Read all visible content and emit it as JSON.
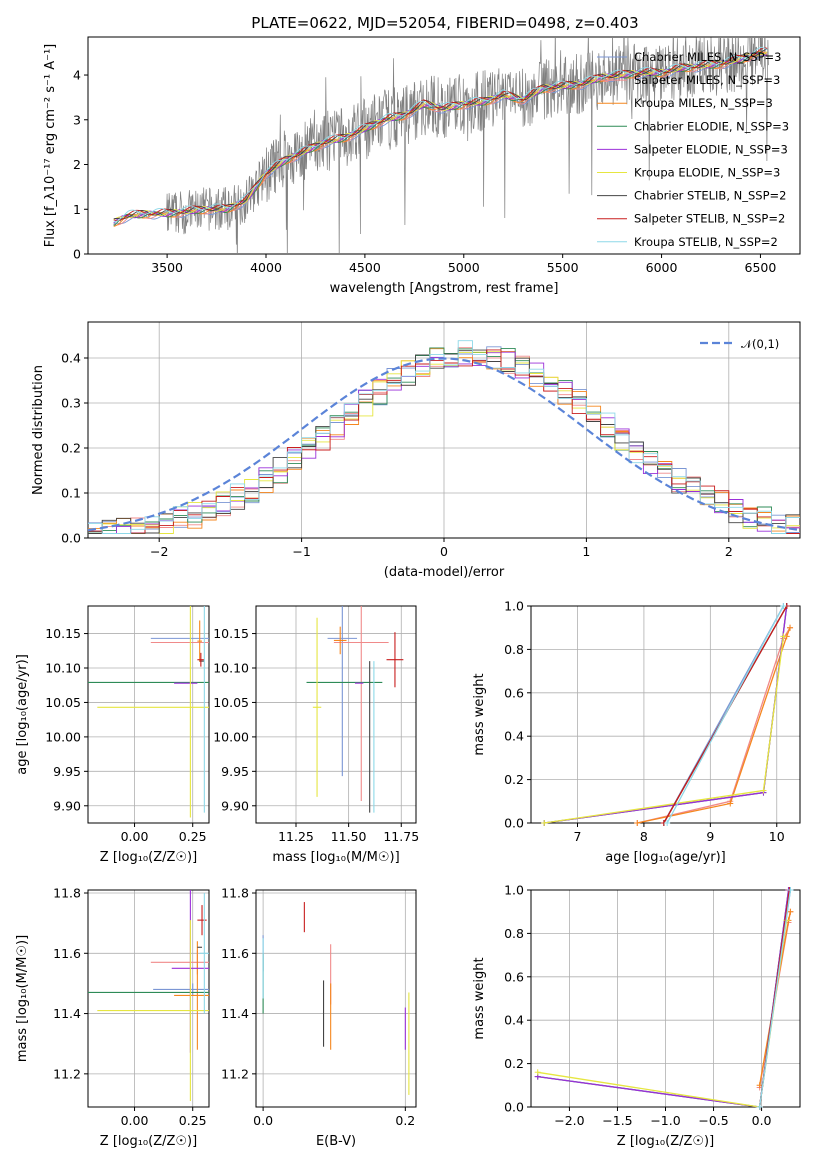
{
  "figure_title": "PLATE=0622, MJD=52054, FIBERID=0498, z=0.403",
  "chart_data": [
    {
      "id": "spectrum",
      "type": "line",
      "xlabel": "wavelength [Angstrom, rest frame]",
      "ylabel": "Flux [f_λ10⁻¹⁷ erg cm⁻² s⁻¹ A⁻¹]",
      "xlim": [
        3100,
        6700
      ],
      "ylim": [
        0,
        4.85
      ],
      "xticks": [
        "3500",
        "4000",
        "4500",
        "5000",
        "5500",
        "6000",
        "6500"
      ],
      "xtick_values": [
        3500,
        4000,
        4500,
        5000,
        5500,
        6000,
        6500
      ],
      "yticks": [
        "0",
        "1",
        "2",
        "3",
        "4"
      ],
      "ytick_values": [
        0,
        1,
        2,
        3,
        4
      ],
      "legend_position": "right",
      "model_continuum": {
        "x": [
          3230,
          3300,
          3400,
          3500,
          3600,
          3700,
          3800,
          3900,
          4000,
          4100,
          4200,
          4300,
          4400,
          4500,
          4600,
          4700,
          4800,
          4900,
          5000,
          5100,
          5200,
          5300,
          5400,
          5500,
          5600,
          5700,
          5800,
          5900,
          6000,
          6100,
          6200,
          6300,
          6400,
          6500
        ],
        "y": [
          0.7,
          0.85,
          0.9,
          0.9,
          0.95,
          1.0,
          1.0,
          1.2,
          1.8,
          2.1,
          2.3,
          2.5,
          2.6,
          2.8,
          3.0,
          3.1,
          3.35,
          3.25,
          3.35,
          3.4,
          3.55,
          3.45,
          3.7,
          3.75,
          3.8,
          3.95,
          4.0,
          4.05,
          4.05,
          4.15,
          4.2,
          4.25,
          4.35,
          4.5
        ]
      },
      "series": [
        {
          "name": "Chabrier MILES, N_SSP=3",
          "color": "#7b96d4"
        },
        {
          "name": "Salpeter MILES, N_SSP=3",
          "color": "#f08a8a"
        },
        {
          "name": "Kroupa MILES, N_SSP=3",
          "color": "#f5871f"
        },
        {
          "name": "Chabrier ELODIE, N_SSP=3",
          "color": "#2e8b57"
        },
        {
          "name": "Salpeter ELODIE, N_SSP=3",
          "color": "#9b30d9"
        },
        {
          "name": "Kroupa ELODIE, N_SSP=3",
          "color": "#e6e640"
        },
        {
          "name": "Chabrier STELIB, N_SSP=2",
          "color": "#444444"
        },
        {
          "name": "Salpeter STELIB, N_SSP=2",
          "color": "#c81e1e"
        },
        {
          "name": "Kroupa STELIB, N_SSP=2",
          "color": "#8ed8e8"
        }
      ]
    },
    {
      "id": "residuals",
      "type": "line",
      "xlabel": "(data-model)/error",
      "ylabel": "Normed distribution",
      "xlim": [
        -2.5,
        2.5
      ],
      "ylim": [
        0,
        0.48
      ],
      "xticks": [
        "−2",
        "−1",
        "0",
        "1",
        "2"
      ],
      "xtick_values": [
        -2,
        -1,
        0,
        1,
        2
      ],
      "yticks": [
        "0.0",
        "0.1",
        "0.2",
        "0.3",
        "0.4"
      ],
      "ytick_values": [
        0,
        0.1,
        0.2,
        0.3,
        0.4
      ],
      "grid": true,
      "legend": "𝒩(0,1)",
      "legend_position": "top-right",
      "gaussian_color": "#5b84d8"
    },
    {
      "id": "z-age",
      "type": "scatter",
      "xlabel": "Z [log₁₀(Z/Z☉)]",
      "ylabel": "age  [log₁₀(age/yr)]",
      "xlim": [
        -0.2,
        0.32
      ],
      "ylim": [
        9.875,
        10.19
      ],
      "xticks": [
        "0.00",
        "0.25"
      ],
      "xtick_values": [
        0,
        0.25
      ],
      "yticks": [
        "9.90",
        "9.95",
        "10.00",
        "10.05",
        "10.10",
        "10.15"
      ],
      "ytick_values": [
        9.9,
        9.95,
        10,
        10.05,
        10.1,
        10.15
      ],
      "grid": true,
      "points": [
        {
          "x": 0.25,
          "y": 10.143,
          "xerr": 0.18,
          "yerr": 0,
          "color": "#7b96d4"
        },
        {
          "x": 0.27,
          "y": 10.137,
          "xerr": 0.2,
          "yerr": 0,
          "color": "#f08a8a"
        },
        {
          "x": 0.28,
          "y": 10.139,
          "xerr": 0.01,
          "yerr": 0.03,
          "color": "#f5871f"
        },
        {
          "x": 0.24,
          "y": 10.079,
          "xerr": 0.45,
          "yerr": 0,
          "color": "#2e8b57"
        },
        {
          "x": 0.22,
          "y": 10.078,
          "xerr": 0.05,
          "yerr": 0,
          "color": "#9b30d9"
        },
        {
          "x": 0.24,
          "y": 10.043,
          "xerr": 0.4,
          "yerr": 0.16,
          "color": "#e6e640"
        },
        {
          "x": 0.29,
          "y": 10.11,
          "xerr": 0.01,
          "yerr": 0,
          "color": "#444444"
        },
        {
          "x": 0.285,
          "y": 10.112,
          "xerr": 0.015,
          "yerr": 0.01,
          "color": "#c81e1e"
        },
        {
          "x": 0.3,
          "y": 10.1,
          "xerr": 0.005,
          "yerr": 0.21,
          "color": "#8ed8e8"
        }
      ]
    },
    {
      "id": "mass-age",
      "type": "scatter",
      "xlabel": "mass [log₁₀(M/M☉)]",
      "ylabel": "",
      "xlim": [
        11.06,
        11.82
      ],
      "ylim": [
        9.875,
        10.19
      ],
      "xticks": [
        "11.25",
        "11.50",
        "11.75"
      ],
      "xtick_values": [
        11.25,
        11.5,
        11.75
      ],
      "yticks": [
        "9.90",
        "9.95",
        "10.00",
        "10.05",
        "10.10",
        "10.15"
      ],
      "ytick_values": [
        9.9,
        9.95,
        10,
        10.05,
        10.1,
        10.15
      ],
      "grid": true,
      "points": [
        {
          "x": 11.47,
          "y": 10.143,
          "xerr": 0.07,
          "yerr": 0.2,
          "color": "#7b96d4"
        },
        {
          "x": 11.56,
          "y": 10.137,
          "xerr": 0.13,
          "yerr": 0.23,
          "color": "#f08a8a"
        },
        {
          "x": 11.46,
          "y": 10.14,
          "xerr": 0.03,
          "yerr": 0.02,
          "color": "#f5871f"
        },
        {
          "x": 11.48,
          "y": 10.079,
          "xerr": 0.18,
          "yerr": 0,
          "color": "#2e8b57"
        },
        {
          "x": 11.55,
          "y": 10.078,
          "xerr": 0.02,
          "yerr": 0,
          "color": "#9b30d9"
        },
        {
          "x": 11.35,
          "y": 10.043,
          "xerr": 0.02,
          "yerr": 0.13,
          "color": "#e6e640"
        },
        {
          "x": 11.6,
          "y": 10.0,
          "xerr": 0,
          "yerr": 0.11,
          "color": "#444444"
        },
        {
          "x": 11.72,
          "y": 10.112,
          "xerr": 0.04,
          "yerr": 0.04,
          "color": "#c81e1e"
        },
        {
          "x": 11.62,
          "y": 10.0,
          "xerr": 0,
          "yerr": 0.11,
          "color": "#8ed8e8"
        }
      ]
    },
    {
      "id": "age-weight",
      "type": "line",
      "xlabel": "age  [log₁₀(age/yr)]",
      "ylabel": "mass weight",
      "xlim": [
        6.3,
        10.35
      ],
      "ylim": [
        0,
        1.0
      ],
      "xticks": [
        "7",
        "8",
        "9",
        "10"
      ],
      "xtick_values": [
        7,
        8,
        9,
        10
      ],
      "yticks": [
        "0.0",
        "0.2",
        "0.4",
        "0.6",
        "0.8",
        "1.0"
      ],
      "ytick_values": [
        0,
        0.2,
        0.4,
        0.6,
        0.8,
        1.0
      ],
      "grid": true,
      "series": [
        {
          "color": "#7b96d4",
          "x": [
            8.3,
            10.1
          ],
          "y": [
            0.0,
            1.0
          ]
        },
        {
          "color": "#f08a8a",
          "x": [
            7.9,
            9.3,
            10.1,
            10.2
          ],
          "y": [
            0.0,
            0.1,
            0.85,
            0.9
          ]
        },
        {
          "color": "#f5871f",
          "x": [
            7.9,
            9.3,
            10.15,
            10.2
          ],
          "y": [
            0.0,
            0.09,
            0.86,
            0.9
          ]
        },
        {
          "color": "#2e8b57",
          "x": [
            6.5,
            9.8,
            10.15
          ],
          "y": [
            0.0,
            0.14,
            1.0
          ]
        },
        {
          "color": "#9b30d9",
          "x": [
            6.5,
            9.8,
            10.15
          ],
          "y": [
            0.0,
            0.14,
            1.0
          ]
        },
        {
          "color": "#e6e640",
          "x": [
            6.5,
            9.8,
            10.1
          ],
          "y": [
            0.0,
            0.15,
            0.86
          ]
        },
        {
          "color": "#444444",
          "x": [
            8.3,
            10.15
          ],
          "y": [
            0.0,
            1.0
          ]
        },
        {
          "color": "#c81e1e",
          "x": [
            8.3,
            10.15
          ],
          "y": [
            0.0,
            1.0
          ]
        },
        {
          "color": "#8ed8e8",
          "x": [
            8.35,
            10.1
          ],
          "y": [
            0.0,
            1.0
          ]
        }
      ]
    },
    {
      "id": "z-mass",
      "type": "scatter",
      "xlabel": "Z [log₁₀(Z/Z☉)]",
      "ylabel": "mass [log₁₀(M/M☉)]",
      "xlim": [
        -0.2,
        0.32
      ],
      "ylim": [
        11.09,
        11.81
      ],
      "xticks": [
        "0.00",
        "0.25"
      ],
      "xtick_values": [
        0,
        0.25
      ],
      "yticks": [
        "11.2",
        "11.4",
        "11.6",
        "11.8"
      ],
      "ytick_values": [
        11.2,
        11.4,
        11.6,
        11.8
      ],
      "grid": true,
      "points": [
        {
          "x": 0.25,
          "y": 11.48,
          "xerr": 0.17,
          "yerr": 0.02,
          "color": "#7b96d4"
        },
        {
          "x": 0.27,
          "y": 11.57,
          "xerr": 0.2,
          "yerr": 0.04,
          "color": "#f08a8a"
        },
        {
          "x": 0.27,
          "y": 11.46,
          "xerr": 0.1,
          "yerr": 0.18,
          "color": "#f5871f"
        },
        {
          "x": 0.24,
          "y": 11.47,
          "xerr": 0.45,
          "yerr": 0,
          "color": "#2e8b57"
        },
        {
          "x": 0.24,
          "y": 11.55,
          "xerr": 0.08,
          "yerr": 0.28,
          "color": "#9b30d9"
        },
        {
          "x": 0.24,
          "y": 11.41,
          "xerr": 0.4,
          "yerr": 0.3,
          "color": "#e6e640"
        },
        {
          "x": 0.28,
          "y": 11.62,
          "xerr": 0.01,
          "yerr": 0,
          "color": "#444444"
        },
        {
          "x": 0.29,
          "y": 11.71,
          "xerr": 0.02,
          "yerr": 0.05,
          "color": "#c81e1e"
        },
        {
          "x": 0.3,
          "y": 11.6,
          "xerr": 0.02,
          "yerr": 0.2,
          "color": "#8ed8e8"
        }
      ]
    },
    {
      "id": "ebv-mass",
      "type": "scatter",
      "xlabel": "E(B-V)",
      "ylabel": "",
      "xlim": [
        -0.01,
        0.215
      ],
      "ylim": [
        11.09,
        11.81
      ],
      "xticks": [
        "0.0",
        "0.2"
      ],
      "xtick_values": [
        0,
        0.2
      ],
      "yticks": [
        "11.2",
        "11.4",
        "11.6",
        "11.8"
      ],
      "ytick_values": [
        11.2,
        11.4,
        11.6,
        11.8
      ],
      "grid": true,
      "points": [
        {
          "x": 0.0,
          "y": 11.6,
          "xerr": 0,
          "yerr": 0.06,
          "color": "#7b96d4"
        },
        {
          "x": 0.095,
          "y": 11.53,
          "xerr": 0,
          "yerr": 0.1,
          "color": "#f08a8a"
        },
        {
          "x": 0.095,
          "y": 11.39,
          "xerr": 0,
          "yerr": 0.11,
          "color": "#f5871f"
        },
        {
          "x": 0.0,
          "y": 11.5,
          "xerr": 0,
          "yerr": 0.1,
          "color": "#2e8b57"
        },
        {
          "x": 0.2,
          "y": 11.35,
          "xerr": 0,
          "yerr": 0.07,
          "color": "#9b30d9"
        },
        {
          "x": 0.205,
          "y": 11.3,
          "xerr": 0,
          "yerr": 0.17,
          "color": "#e6e640"
        },
        {
          "x": 0.085,
          "y": 11.4,
          "xerr": 0,
          "yerr": 0.11,
          "color": "#444444"
        },
        {
          "x": 0.058,
          "y": 11.72,
          "xerr": 0,
          "yerr": 0.05,
          "color": "#c81e1e"
        },
        {
          "x": 0.0,
          "y": 11.55,
          "xerr": 0,
          "yerr": 0.1,
          "color": "#8ed8e8"
        }
      ]
    },
    {
      "id": "z-weight",
      "type": "line",
      "xlabel": "Z [log₁₀(Z/Z☉)]",
      "ylabel": "mass weight",
      "xlim": [
        -2.4,
        0.4
      ],
      "ylim": [
        0,
        1.0
      ],
      "xticks": [
        "−2.0",
        "−1.5",
        "−1.0",
        "−0.5",
        "0.0"
      ],
      "xtick_values": [
        -2,
        -1.5,
        -1,
        -0.5,
        0
      ],
      "yticks": [
        "0.0",
        "0.2",
        "0.4",
        "0.6",
        "0.8",
        "1.0"
      ],
      "ytick_values": [
        0,
        0.2,
        0.4,
        0.6,
        0.8,
        1.0
      ],
      "grid": true,
      "series": [
        {
          "color": "#7b96d4",
          "x": [
            -0.02,
            0.3
          ],
          "y": [
            0.0,
            1.0
          ]
        },
        {
          "color": "#f08a8a",
          "x": [
            -0.02,
            0.28,
            0.3
          ],
          "y": [
            0.09,
            0.85,
            0.9
          ]
        },
        {
          "color": "#f5871f",
          "x": [
            -0.02,
            0.28,
            0.3
          ],
          "y": [
            0.1,
            0.86,
            0.9
          ]
        },
        {
          "color": "#2e8b57",
          "x": [
            -2.33,
            -0.02,
            0.28
          ],
          "y": [
            0.14,
            0.0,
            1.0
          ]
        },
        {
          "color": "#9b30d9",
          "x": [
            -2.33,
            -0.02,
            0.28
          ],
          "y": [
            0.14,
            0.0,
            1.0
          ]
        },
        {
          "color": "#e6e640",
          "x": [
            -2.33,
            -0.02,
            0.26
          ],
          "y": [
            0.16,
            0.0,
            0.86
          ]
        },
        {
          "color": "#444444",
          "x": [
            -0.02,
            0.29
          ],
          "y": [
            0.0,
            1.0
          ]
        },
        {
          "color": "#c81e1e",
          "x": [
            -0.02,
            0.29
          ],
          "y": [
            0.0,
            1.0
          ]
        },
        {
          "color": "#8ed8e8",
          "x": [
            -0.02,
            0.3
          ],
          "y": [
            0.0,
            1.0
          ]
        }
      ]
    }
  ]
}
